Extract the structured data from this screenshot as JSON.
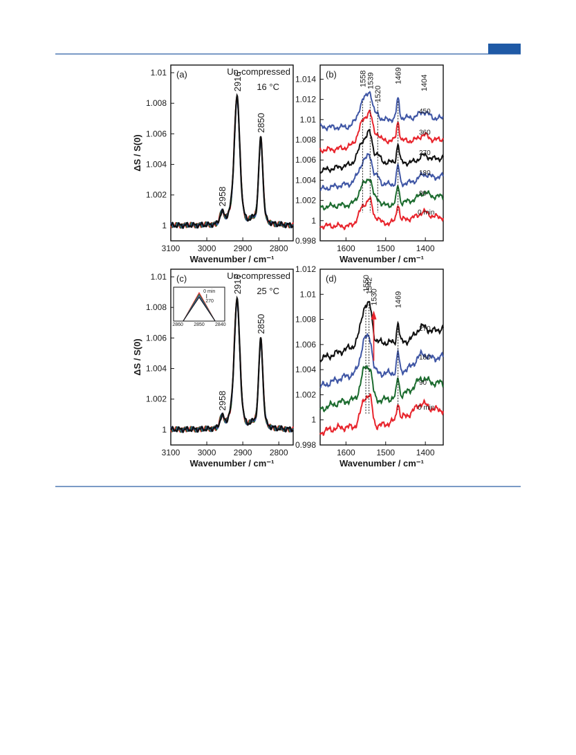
{
  "colors": {
    "rule": "#2b5ea5",
    "header_block": "#1f5aa6",
    "red": "#e8242c",
    "blue": "#3f56a5",
    "green": "#1b6b2e",
    "black": "#111111"
  },
  "chart_data": [
    {
      "id": "a",
      "type": "line",
      "panel_label": "(a)",
      "annotations": [
        "Un-compressed",
        "16 °C"
      ],
      "xlabel": "Wavenumber / cm⁻¹",
      "ylabel": "ΔS / S(0)",
      "xlim": [
        3100,
        2760
      ],
      "ylim": [
        0.999,
        1.0105
      ],
      "xticks": [
        3100,
        3000,
        2900,
        2800
      ],
      "yticks": [
        1,
        1.002,
        1.004,
        1.006,
        1.008,
        1.01
      ],
      "ytick_labels": [
        "1",
        "1.002",
        "1.004",
        "1.006",
        "1.008",
        "1.01"
      ],
      "peaks": [
        {
          "label": "2916",
          "x": 2916,
          "y": 1.0084
        },
        {
          "label": "2850",
          "x": 2850,
          "y": 1.0057
        },
        {
          "label": "2958",
          "x": 2958,
          "y": 1.0007
        }
      ],
      "baseline": 1.0,
      "series_colors": [
        "#e8242c",
        "#1b6b2e",
        "#3f56a5",
        "#111111"
      ]
    },
    {
      "id": "b",
      "type": "line",
      "panel_label": "(b)",
      "xlabel": "Wavenumber / cm⁻¹",
      "xlim": [
        1665,
        1355
      ],
      "ylim": [
        0.998,
        1.0154
      ],
      "xticks": [
        1600,
        1500,
        1400
      ],
      "yticks": [
        0.998,
        1,
        1.002,
        1.004,
        1.006,
        1.008,
        1.01,
        1.012,
        1.014
      ],
      "ytick_labels": [
        "0.998",
        "1",
        "1.002",
        "1.004",
        "1.006",
        "1.008",
        "1.01",
        "1.012",
        "1.014"
      ],
      "peak_labels": [
        {
          "label": "1558",
          "x": 1558
        },
        {
          "label": "1539",
          "x": 1539
        },
        {
          "label": "1520",
          "x": 1520
        },
        {
          "label": "1469",
          "x": 1469
        },
        {
          "label": "1404",
          "x": 1404
        }
      ],
      "series": [
        {
          "name": "0 min",
          "color": "#e8242c",
          "offset": 1.0
        },
        {
          "name": "90",
          "color": "#1b6b2e",
          "offset": 1.0019
        },
        {
          "name": "180",
          "color": "#3f56a5",
          "offset": 1.0039
        },
        {
          "name": "270",
          "color": "#111111",
          "offset": 1.0059
        },
        {
          "name": "360",
          "color": "#e8242c",
          "offset": 1.0079
        },
        {
          "name": "450",
          "color": "#3f56a5",
          "offset": 1.01
        }
      ]
    },
    {
      "id": "c",
      "type": "line",
      "panel_label": "(c)",
      "annotations": [
        "Un-compressed",
        "25 °C"
      ],
      "xlabel": "Wavenumber / cm⁻¹",
      "ylabel": "ΔS / S(0)",
      "xlim": [
        3100,
        2760
      ],
      "ylim": [
        0.999,
        1.0105
      ],
      "xticks": [
        3100,
        3000,
        2900,
        2800
      ],
      "yticks": [
        1,
        1.002,
        1.004,
        1.006,
        1.008,
        1.01
      ],
      "ytick_labels": [
        "1",
        "1.002",
        "1.004",
        "1.006",
        "1.008",
        "1.01"
      ],
      "peaks": [
        {
          "label": "2916",
          "x": 2916,
          "y": 1.0085
        },
        {
          "label": "2850",
          "x": 2850,
          "y": 1.0059
        },
        {
          "label": "2958",
          "x": 2958,
          "y": 1.0007
        }
      ],
      "baseline": 1.0,
      "series_colors": [
        "#e8242c",
        "#1b6b2e",
        "#3f56a5",
        "#111111"
      ],
      "inset": {
        "xticks": [
          2860,
          2850,
          2840
        ],
        "labels": [
          "0 min",
          "270"
        ]
      }
    },
    {
      "id": "d",
      "type": "line",
      "panel_label": "(d)",
      "xlabel": "Wavenumber / cm⁻¹",
      "xlim": [
        1665,
        1355
      ],
      "ylim": [
        0.998,
        1.012
      ],
      "xticks": [
        1600,
        1500,
        1400
      ],
      "yticks": [
        0.998,
        1,
        1.002,
        1.004,
        1.006,
        1.008,
        1.01,
        1.012
      ],
      "ytick_labels": [
        "0.998",
        "1",
        "1.002",
        "1.004",
        "1.006",
        "1.008",
        "1.01",
        "1.012"
      ],
      "peak_labels": [
        {
          "label": "1550",
          "x": 1550,
          "color": "#111111"
        },
        {
          "label": "1542",
          "x": 1542,
          "color": "#111111"
        },
        {
          "label": "1530",
          "x": 1530,
          "color": "#e8242c"
        },
        {
          "label": "1469",
          "x": 1469,
          "color": "#111111"
        }
      ],
      "series": [
        {
          "name": "0 min",
          "color": "#e8242c",
          "offset": 1.0
        },
        {
          "name": "90",
          "color": "#1b6b2e",
          "offset": 1.002
        },
        {
          "name": "180",
          "color": "#3f56a5",
          "offset": 1.004
        },
        {
          "name": "270",
          "color": "#111111",
          "offset": 1.0063
        }
      ]
    }
  ]
}
